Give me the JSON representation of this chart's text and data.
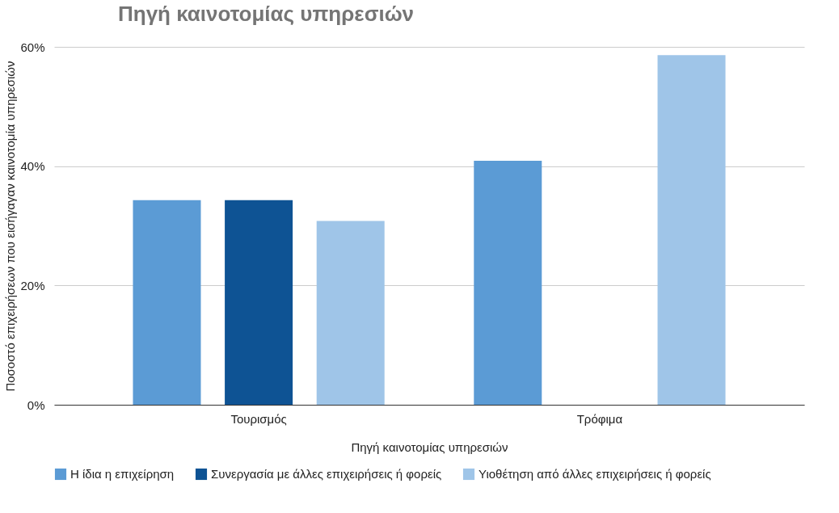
{
  "chart_data": {
    "type": "bar",
    "title": "Πηγή καινοτομίας υπηρεσιών",
    "xlabel": "Πηγή καινοτομίας υπηρεσιών",
    "ylabel": "Ποσοστό επιχειρήσεων που εισήγαγαν καινοτομία υπηρεσιών",
    "categories": [
      "Τουρισμός",
      "Τρόφιμα"
    ],
    "series": [
      {
        "name": "Η ίδια η επιχείρηση",
        "color": "#5b9bd5",
        "values": [
          34.3,
          40.9
        ]
      },
      {
        "name": "Συνεργασία με άλλες επιχειρήσεις ή φορείς",
        "color": "#0e5394",
        "values": [
          34.3,
          null
        ]
      },
      {
        "name": "Υιοθέτηση από άλλες επιχειρήσεις ή φορείς",
        "color": "#9fc5e8",
        "values": [
          30.8,
          58.6
        ]
      }
    ],
    "ylim": [
      0,
      60
    ],
    "yticks": [
      {
        "value": 0,
        "label": "0%"
      },
      {
        "value": 20,
        "label": "20%"
      },
      {
        "value": 40,
        "label": "40%"
      },
      {
        "value": 60,
        "label": "60%"
      }
    ],
    "grid": "y",
    "legend": "bottom"
  }
}
